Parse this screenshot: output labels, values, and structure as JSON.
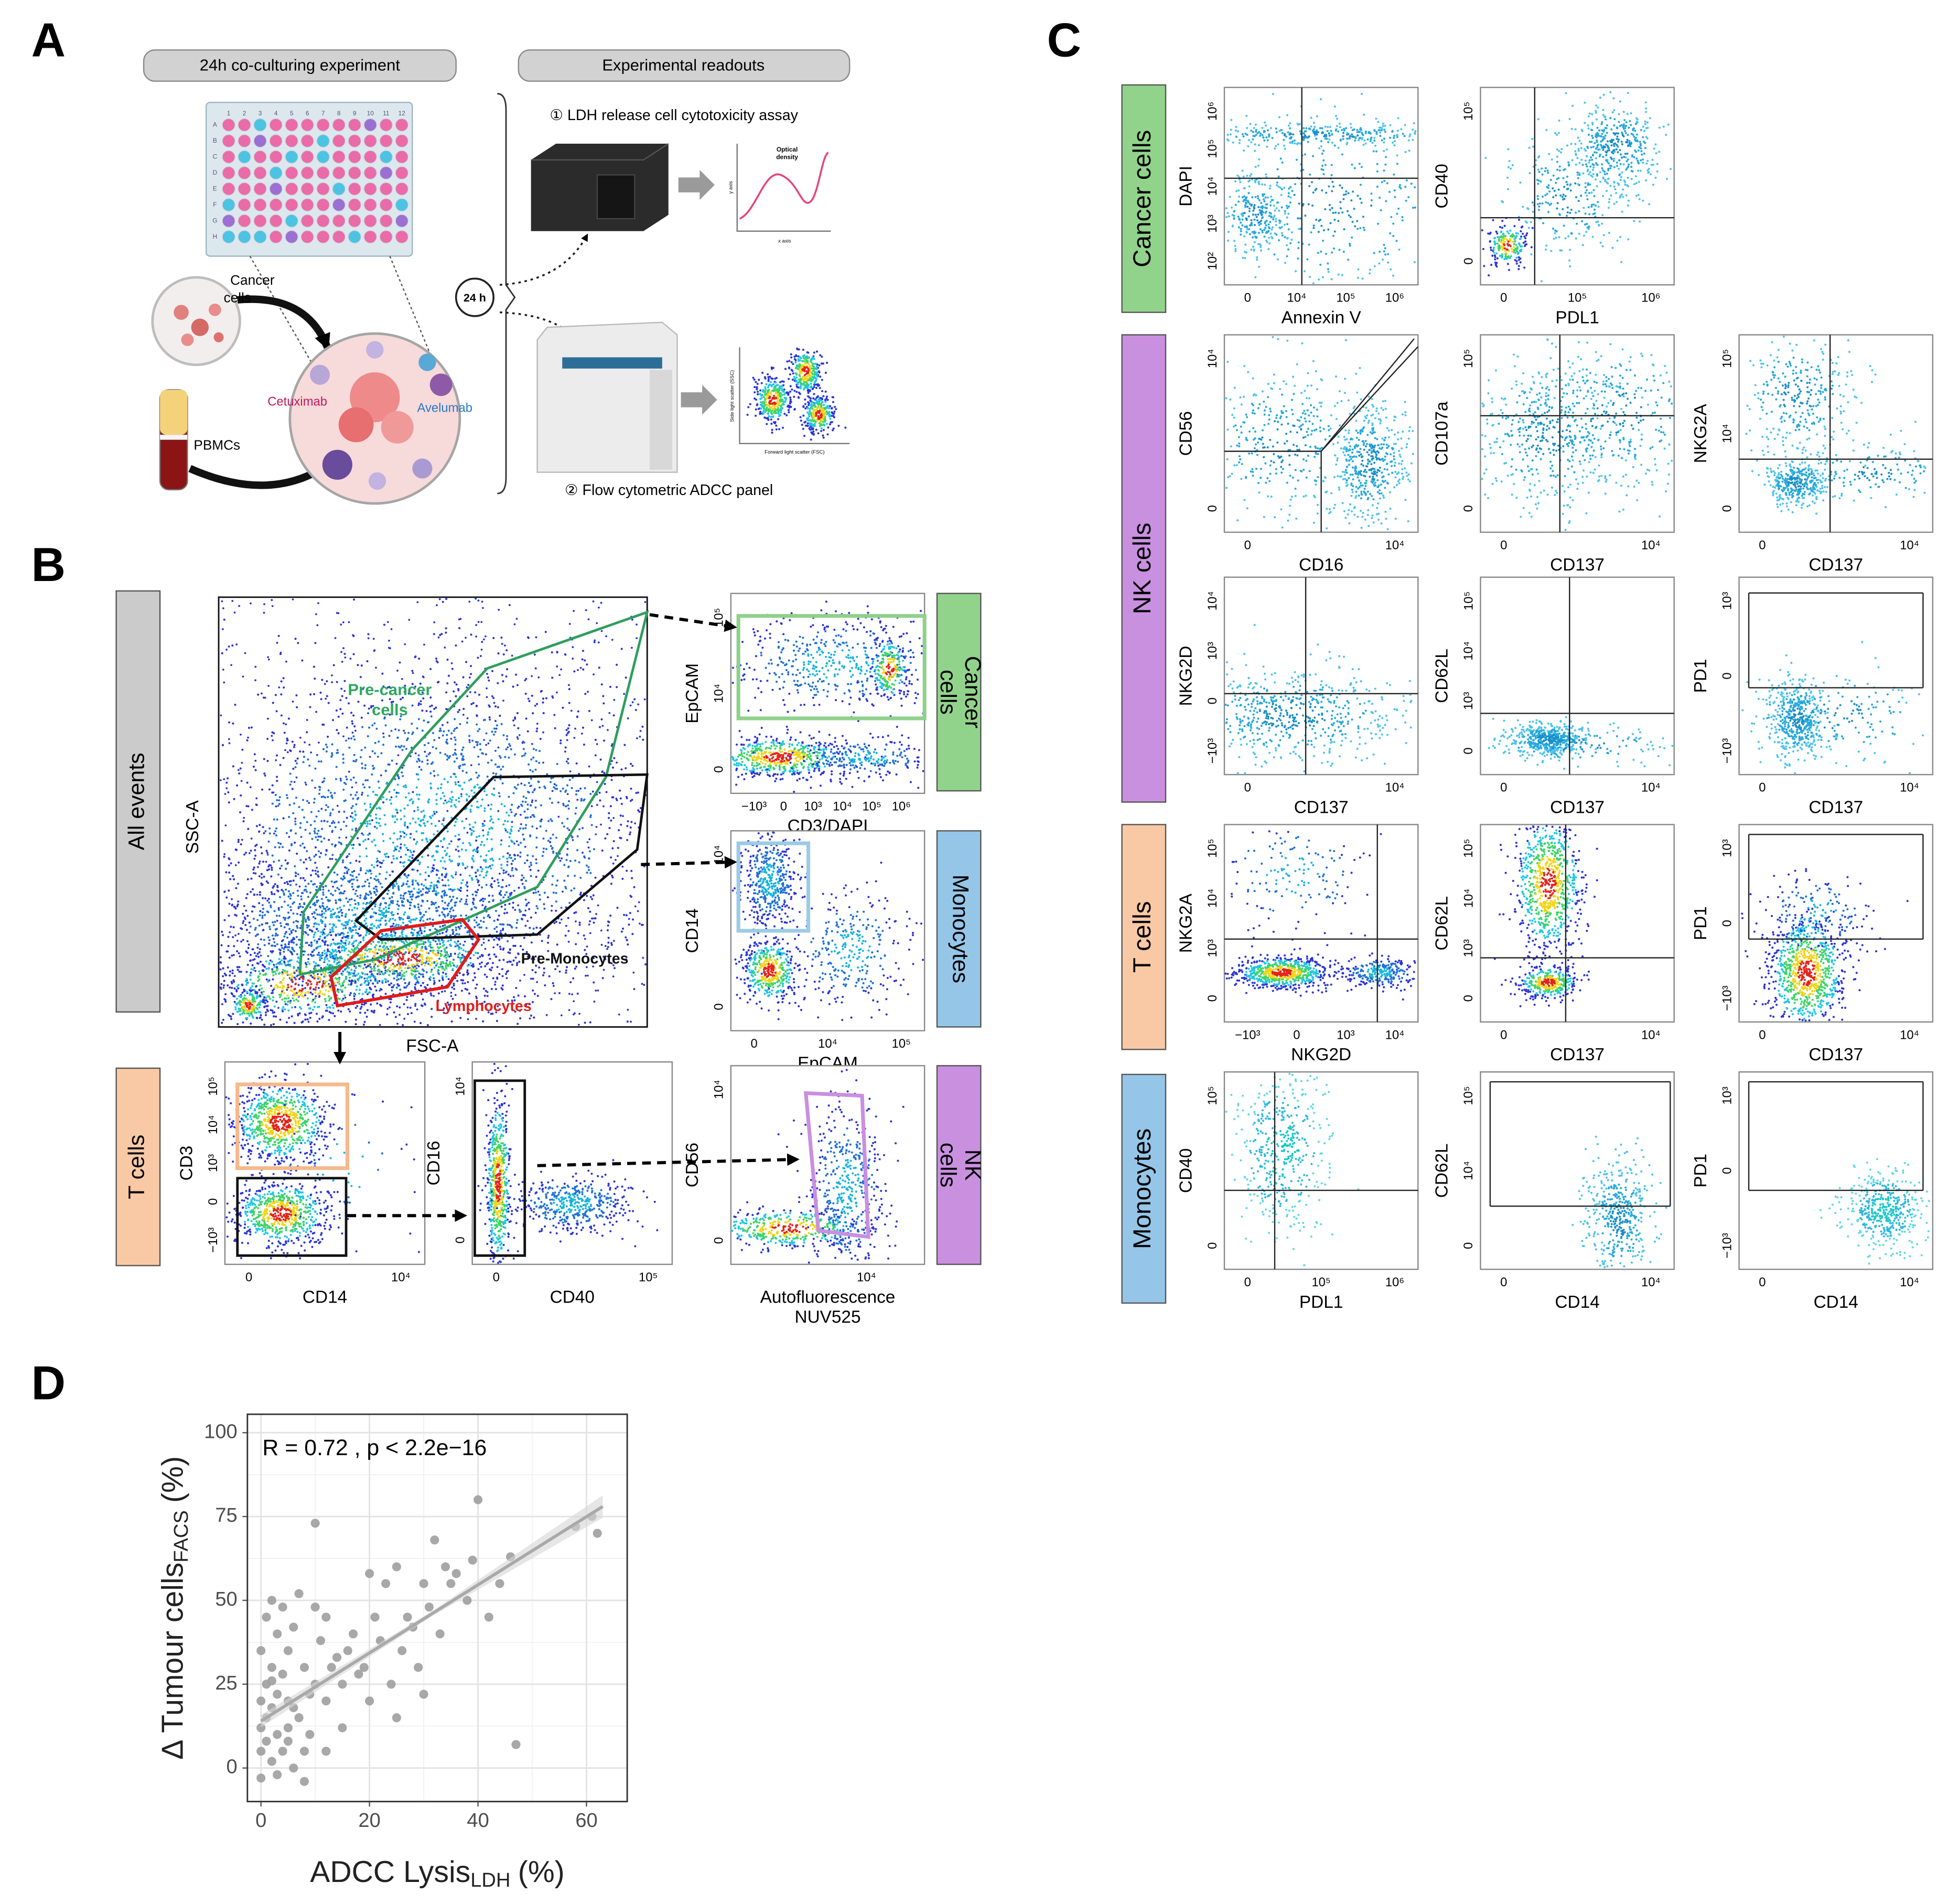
{
  "panel_labels": [
    "A",
    "B",
    "C",
    "D"
  ],
  "panel_a": {
    "header_left": "24h co-culturing experiment",
    "header_right": "Experimental readouts",
    "plate_columns": [
      "1",
      "2",
      "3",
      "4",
      "5",
      "6",
      "7",
      "8",
      "9",
      "10",
      "11",
      "12"
    ],
    "plate_rows": [
      "A",
      "B",
      "C",
      "D",
      "E",
      "F",
      "G",
      "H"
    ],
    "cancer_cells": [
      "Cancer",
      "cells"
    ],
    "pbmcs": "PBMCs",
    "cetuximab": "Cetuximab",
    "avelumab": "Avelumab",
    "duration": "24 h",
    "readout_1": "① LDH release cell cytotoxicity assay",
    "readout_2": "② Flow cytometric ADCC panel",
    "od_plot": {
      "title": [
        "Optical",
        "density"
      ],
      "xlabel": "x axis",
      "ylabel": "y axis"
    },
    "scatter_plot": {
      "xlabel": "Forward light scatter (FSC)",
      "ylabel": "Side light scatter (SSC)"
    }
  },
  "panel_b": {
    "main": {
      "side": [
        "All events"
      ],
      "xlabel": "FSC-A",
      "ylabel": "SSC-A",
      "gates": {
        "pre_cancer": [
          "Pre-cancer",
          "cells"
        ],
        "pre_monocytes": "Pre-Monocytes",
        "lymphocytes": "Lymphocytes"
      }
    },
    "plots": [
      {
        "side": [
          "Cancer",
          "cells"
        ],
        "ylabel": "EpCAM",
        "xlabel": [
          "CD3/DAPI"
        ],
        "yticks": [
          "0",
          "10⁴",
          "10⁵"
        ],
        "xticks": [
          "−10³",
          "0",
          "10³",
          "10⁴",
          "10⁵",
          "10⁶"
        ]
      },
      {
        "side": [
          "Monocytes"
        ],
        "ylabel": "CD14",
        "xlabel": [
          "EpCAM"
        ],
        "yticks": [
          "0",
          "10⁴"
        ],
        "xticks": [
          "0",
          "10⁴",
          "10⁵"
        ]
      },
      {
        "side": [
          "T cells"
        ],
        "ylabel": "CD3",
        "xlabel": [
          "CD14"
        ],
        "yticks": [
          "−10³",
          "0",
          "10³",
          "10⁴",
          "10⁵"
        ],
        "xticks": [
          "0",
          "10⁴"
        ]
      },
      {
        "ylabel": "CD16",
        "xlabel": [
          "CD40"
        ],
        "yticks": [
          "0",
          "10⁴"
        ],
        "xticks": [
          "0",
          "10⁵"
        ]
      },
      {
        "side": [
          "NK",
          "cells"
        ],
        "ylabel": "CD56",
        "xlabel": [
          "Autofluorescence",
          "NUV525"
        ],
        "yticks": [
          "0",
          "10⁴"
        ],
        "xticks": [
          "10⁴"
        ]
      }
    ]
  },
  "panel_c": {
    "groups": [
      "Cancer cells",
      "NK cells",
      "T cells",
      "Monocytes"
    ],
    "plots": [
      {
        "ylabel": "DAPI",
        "xlabel": "Annexin V",
        "yticks": [
          "10²",
          "10³",
          "10⁴",
          "10⁵",
          "10⁶"
        ],
        "xticks": [
          "0",
          "10⁴",
          "10⁵",
          "10⁶"
        ]
      },
      {
        "ylabel": "CD40",
        "xlabel": "PDL1",
        "yticks": [
          "0",
          "10⁵"
        ],
        "xticks": [
          "0",
          "10⁵",
          "10⁶"
        ]
      },
      {
        "ylabel": "CD56",
        "xlabel": "CD16",
        "yticks": [
          "0",
          "10⁴"
        ],
        "xticks": [
          "0",
          "10⁴"
        ]
      },
      {
        "ylabel": "CD107a",
        "xlabel": "CD137",
        "yticks": [
          "0",
          "10⁵"
        ],
        "xticks": [
          "0",
          "10⁴"
        ]
      },
      {
        "ylabel": "NKG2A",
        "xlabel": "CD137",
        "yticks": [
          "0",
          "10⁴",
          "10⁵"
        ],
        "xticks": [
          "0",
          "10⁴"
        ]
      },
      {
        "ylabel": "NKG2D",
        "xlabel": "CD137",
        "yticks": [
          "−10³",
          "0",
          "10³",
          "10⁴"
        ],
        "xticks": [
          "0",
          "10⁴"
        ]
      },
      {
        "ylabel": "CD62L",
        "xlabel": "CD137",
        "yticks": [
          "0",
          "10³",
          "10⁴",
          "10⁵"
        ],
        "xticks": [
          "0",
          "10⁴"
        ]
      },
      {
        "ylabel": "PD1",
        "xlabel": "CD137",
        "yticks": [
          "−10³",
          "0",
          "10³"
        ],
        "xticks": [
          "0",
          "10⁴"
        ]
      },
      {
        "ylabel": "NKG2A",
        "xlabel": "NKG2D",
        "yticks": [
          "0",
          "10³",
          "10⁴",
          "10⁵"
        ],
        "xticks": [
          "−10³",
          "0",
          "10³",
          "10⁴"
        ]
      },
      {
        "ylabel": "CD62L",
        "xlabel": "CD137",
        "yticks": [
          "0",
          "10³",
          "10⁴",
          "10⁵"
        ],
        "xticks": [
          "0",
          "10⁴"
        ]
      },
      {
        "ylabel": "PD1",
        "xlabel": "CD137",
        "yticks": [
          "−10³",
          "0",
          "10³"
        ],
        "xticks": [
          "0",
          "10⁴"
        ]
      },
      {
        "ylabel": "CD40",
        "xlabel": "PDL1",
        "yticks": [
          "0",
          "10⁵"
        ],
        "xticks": [
          "0",
          "10⁵",
          "10⁶"
        ]
      },
      {
        "ylabel": "CD62L",
        "xlabel": "CD14",
        "yticks": [
          "0",
          "10⁴",
          "10⁵"
        ],
        "xticks": [
          "0",
          "10⁴"
        ]
      },
      {
        "ylabel": "PD1",
        "xlabel": "CD14",
        "yticks": [
          "−10³",
          "0",
          "10³"
        ],
        "xticks": [
          "0",
          "10⁴"
        ]
      }
    ]
  },
  "chart_data": {
    "type": "scatter",
    "annotation": "R = 0.72 , p < 2.2e−16",
    "x_label": {
      "text": "ADCC Lysis",
      "sub": "LDH",
      "unit": "(%)"
    },
    "y_label": {
      "text": "Δ Tumour cells",
      "sub": "FACS",
      "unit": "(%)"
    },
    "x": [
      0,
      0,
      0,
      0,
      0,
      1,
      1,
      1,
      1,
      2,
      2,
      2,
      2,
      3,
      3,
      3,
      4,
      4,
      4,
      5,
      5,
      5,
      6,
      6,
      6,
      7,
      7,
      8,
      8,
      9,
      9,
      10,
      10,
      11,
      12,
      12,
      13,
      14,
      15,
      15,
      16,
      17,
      18,
      19,
      20,
      20,
      21,
      22,
      23,
      24,
      25,
      26,
      27,
      28,
      29,
      30,
      31,
      32,
      33,
      34,
      35,
      36,
      38,
      39,
      40,
      42,
      44,
      46,
      47,
      58,
      61,
      62,
      8,
      3,
      5,
      12,
      25,
      30,
      2,
      10
    ],
    "y": [
      5,
      20,
      35,
      -3,
      12,
      45,
      8,
      25,
      15,
      30,
      2,
      50,
      18,
      10,
      40,
      22,
      48,
      5,
      28,
      12,
      35,
      20,
      18,
      0,
      42,
      15,
      52,
      30,
      -4,
      22,
      10,
      25,
      73,
      38,
      20,
      45,
      30,
      33,
      25,
      12,
      35,
      40,
      28,
      30,
      58,
      20,
      45,
      38,
      55,
      25,
      60,
      35,
      45,
      42,
      30,
      55,
      48,
      68,
      40,
      60,
      55,
      58,
      50,
      62,
      80,
      45,
      55,
      63,
      7,
      72,
      75,
      70,
      5,
      -2,
      8,
      5,
      15,
      22,
      26,
      48
    ],
    "color": "#9e9e9e",
    "trend_line": {
      "x": [
        0,
        63
      ],
      "y": [
        14,
        78
      ],
      "color": "#a9a9a9"
    },
    "xlim": [
      -2.5,
      67.5
    ],
    "ylim": [
      -10,
      105.5
    ],
    "xticks": [
      0,
      20,
      40,
      60
    ],
    "yticks": [
      0,
      25,
      50,
      75,
      100
    ],
    "grid": true
  }
}
